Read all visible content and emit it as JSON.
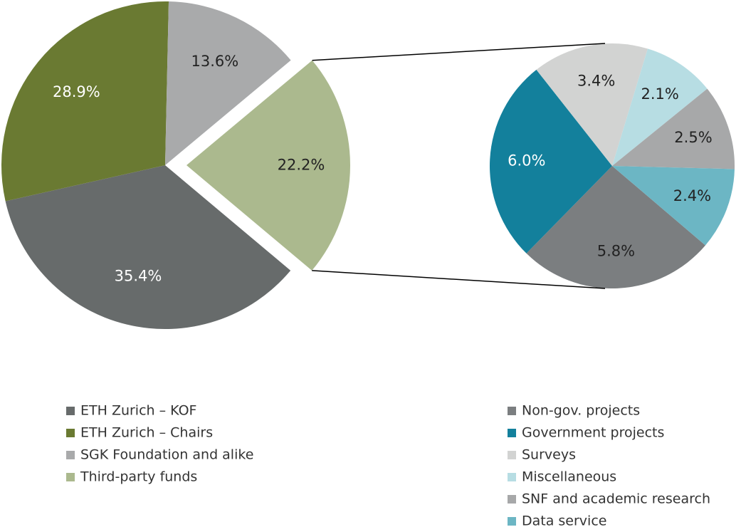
{
  "chart_data": [
    {
      "type": "pie",
      "categories": [
        "ETH Zurich – KOF",
        "ETH Zurich – Chairs",
        "SGK Foundation and alike",
        "Third-party funds"
      ],
      "values": [
        35.4,
        28.9,
        13.6,
        22.2
      ],
      "value_labels": [
        "35.4%",
        "28.9%",
        "13.6%",
        "22.2%"
      ],
      "colors": [
        "#676b6b",
        "#6a7a32",
        "#a9aaab",
        "#abb98e"
      ]
    },
    {
      "type": "pie",
      "categories": [
        "Non-gov. projects",
        "Government projects",
        "Surveys",
        "Miscellaneous",
        "SNF and academic research",
        "Data service"
      ],
      "values": [
        5.8,
        6.0,
        3.4,
        2.1,
        2.5,
        2.4
      ],
      "value_labels": [
        "5.8%",
        "6.0%",
        "3.4%",
        "2.1%",
        "2.5%",
        "2.4%"
      ],
      "colors": [
        "#7b7e80",
        "#13809c",
        "#d2d3d2",
        "#b7dde3",
        "#a7a8a9",
        "#6cb6c4"
      ]
    }
  ]
}
